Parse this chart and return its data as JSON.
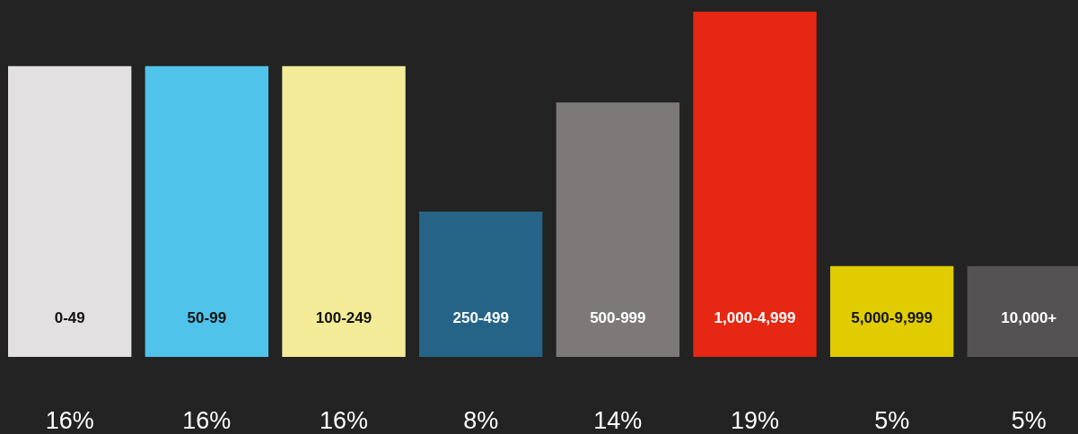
{
  "chart_data": {
    "type": "bar",
    "categories": [
      "0-49",
      "50-99",
      "100-249",
      "250-499",
      "500-999",
      "1,000-4,999",
      "5,000-9,999",
      "10,000+"
    ],
    "values": [
      16,
      16,
      16,
      8,
      14,
      19,
      5,
      5
    ],
    "colors": [
      "#e2e0e1",
      "#4fc3ea",
      "#f3eb98",
      "#256486",
      "#7d7979",
      "#e52713",
      "#e0cc00",
      "#555253"
    ],
    "value_labels": [
      "16%",
      "16%",
      "16%",
      "8%",
      "14%",
      "19%",
      "5%",
      "5%"
    ],
    "ylim": [
      0,
      19
    ],
    "grid": false
  }
}
